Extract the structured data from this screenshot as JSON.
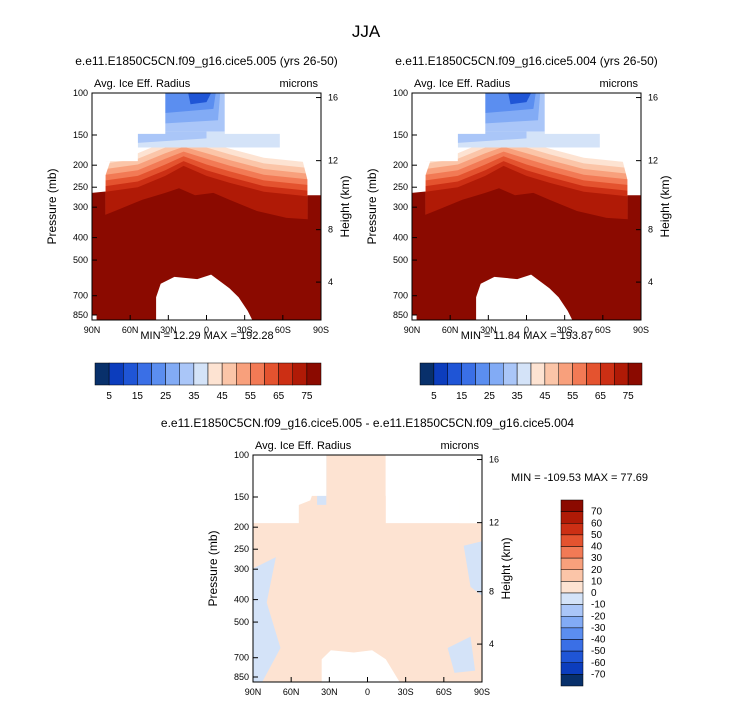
{
  "page": {
    "title": "JJA"
  },
  "panels": [
    {
      "id": "p1",
      "title": "e.e11.E1850C5CN.f09_g16.cice5.005 (yrs 26-50)",
      "variable": "Avg. Ice Eff. Radius",
      "units": "microns",
      "ylabel_left": "Pressure (mb)",
      "ylabel_right": "Height (km)",
      "stats": "MIN = 12.29  MAX = 192.28"
    },
    {
      "id": "p2",
      "title": "e.e11.E1850C5CN.f09_g16.cice5.004 (yrs 26-50)",
      "variable": "Avg. Ice Eff. Radius",
      "units": "microns",
      "ylabel_left": "Pressure (mb)",
      "ylabel_right": "Height (km)",
      "stats": "MIN = 11.84  MAX = 193.87"
    },
    {
      "id": "p3",
      "title": "e.e11.E1850C5CN.f09_g16.cice5.005 - e.e11.E1850C5CN.f09_g16.cice5.004",
      "variable": "Avg. Ice Eff. Radius",
      "units": "microns",
      "ylabel_left": "Pressure (mb)",
      "ylabel_right": "Height (km)",
      "stats": "MIN = -109.53  MAX =  77.69"
    }
  ],
  "chart_data": [
    {
      "type": "heatmap",
      "title": "e.e11.E1850C5CN.f09_g16.cice5.005 (yrs 26-50)",
      "xlabel": "",
      "ylabel": "Pressure (mb)",
      "y2label": "Height (km)",
      "x_ticks": [
        "90N",
        "60N",
        "30N",
        "0",
        "30S",
        "60S",
        "90S"
      ],
      "y_ticks": [
        "100",
        "150",
        "200",
        "250",
        "300",
        "400",
        "500",
        "700",
        "850"
      ],
      "y2_ticks": [
        "4",
        "8",
        "12",
        "16"
      ],
      "colorbar_levels": [
        5,
        10,
        15,
        20,
        25,
        30,
        35,
        40,
        45,
        50,
        55,
        60,
        65,
        70,
        75
      ],
      "colorbar_labels": [
        "5",
        "15",
        "25",
        "35",
        "45",
        "55",
        "65",
        "75"
      ],
      "min": 12.29,
      "max": 192.28
    },
    {
      "type": "heatmap",
      "title": "e.e11.E1850C5CN.f09_g16.cice5.004 (yrs 26-50)",
      "xlabel": "",
      "ylabel": "Pressure (mb)",
      "y2label": "Height (km)",
      "x_ticks": [
        "90N",
        "60N",
        "30N",
        "0",
        "30S",
        "60S",
        "90S"
      ],
      "y_ticks": [
        "100",
        "150",
        "200",
        "250",
        "300",
        "400",
        "500",
        "700",
        "850"
      ],
      "y2_ticks": [
        "4",
        "8",
        "12",
        "16"
      ],
      "colorbar_levels": [
        5,
        10,
        15,
        20,
        25,
        30,
        35,
        40,
        45,
        50,
        55,
        60,
        65,
        70,
        75
      ],
      "colorbar_labels": [
        "5",
        "15",
        "25",
        "35",
        "45",
        "55",
        "65",
        "75"
      ],
      "min": 11.84,
      "max": 193.87
    },
    {
      "type": "heatmap",
      "title": "e.e11.E1850C5CN.f09_g16.cice5.005 - e.e11.E1850C5CN.f09_g16.cice5.004",
      "xlabel": "",
      "ylabel": "Pressure (mb)",
      "y2label": "Height (km)",
      "x_ticks": [
        "90N",
        "60N",
        "30N",
        "0",
        "30S",
        "60S",
        "90S"
      ],
      "y_ticks": [
        "100",
        "150",
        "200",
        "250",
        "300",
        "400",
        "500",
        "700",
        "850"
      ],
      "y2_ticks": [
        "4",
        "8",
        "12",
        "16"
      ],
      "colorbar_levels": [
        70,
        60,
        50,
        40,
        30,
        20,
        10,
        0,
        -10,
        -20,
        -30,
        -40,
        -50,
        -60,
        -70
      ],
      "colorbar_labels": [
        "70",
        "60",
        "50",
        "40",
        "30",
        "20",
        "10",
        "0",
        "-10",
        "-20",
        "-30",
        "-40",
        "-50",
        "-60",
        "-70"
      ],
      "min": -109.53,
      "max": 77.69
    }
  ],
  "colors": {
    "scale": [
      "#08306b",
      "#0c3dbd",
      "#1f55d6",
      "#3a6fe6",
      "#5b8ef0",
      "#82abf5",
      "#aac6f8",
      "#d4e3f8",
      "#fde3d2",
      "#fbc5a8",
      "#f8a07c",
      "#f27a55",
      "#e4532f",
      "#cc2f14",
      "#b01a06",
      "#8b0a00"
    ],
    "diff_scale": [
      "#8b0a00",
      "#b01a06",
      "#cc2f14",
      "#e4532f",
      "#f27a55",
      "#f8a07c",
      "#fbc5a8",
      "#fde3d2",
      "#d4e3f8",
      "#aac6f8",
      "#82abf5",
      "#5b8ef0",
      "#3a6fe6",
      "#1f55d6",
      "#0c3dbd",
      "#08306b"
    ]
  }
}
